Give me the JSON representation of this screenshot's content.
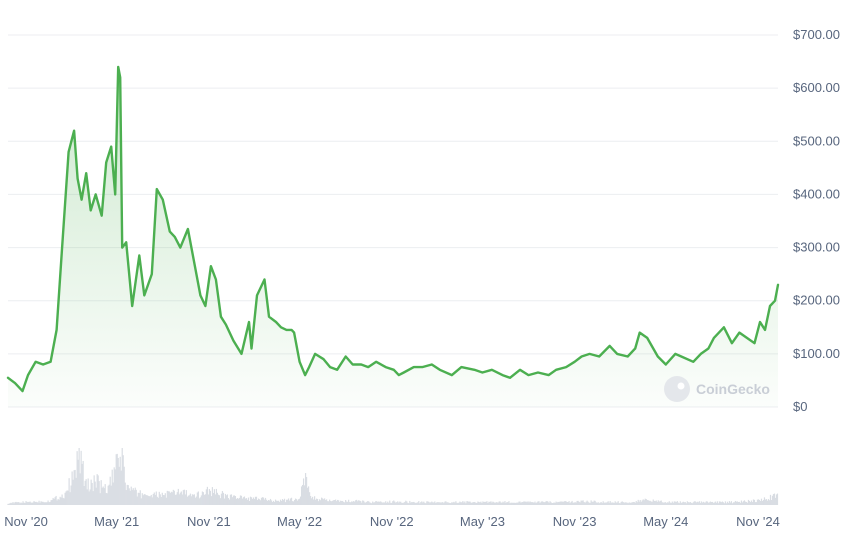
{
  "chart_data": {
    "type": "area",
    "currency_prefix": "$",
    "y_ticks": [
      "$700.00",
      "$600.00",
      "$500.00",
      "$400.00",
      "$300.00",
      "$200.00",
      "$100.00",
      "$0"
    ],
    "y_tick_values": [
      700,
      600,
      500,
      400,
      300,
      200,
      100,
      0
    ],
    "ylim": [
      0,
      700
    ],
    "x_ticks": [
      "Nov '20",
      "May '21",
      "Nov '21",
      "May '22",
      "Nov '22",
      "May '23",
      "Nov '23",
      "May '24",
      "Nov '24"
    ],
    "x_tick_dates": [
      "2020-11-01",
      "2021-05-01",
      "2021-11-01",
      "2022-05-01",
      "2022-11-01",
      "2023-05-01",
      "2023-11-01",
      "2024-05-01",
      "2024-11-01"
    ],
    "xlim": [
      "2020-09-26",
      "2024-12-11"
    ],
    "grid": true,
    "line_color": "#4caf50",
    "fill_color": "#4caf50",
    "volume_color": "#d9dde3",
    "watermark": "CoinGecko",
    "series": [
      {
        "x": [
          "2020-09-26",
          "2020-10-10",
          "2020-10-25",
          "2020-11-05",
          "2020-11-20",
          "2020-12-05",
          "2020-12-20",
          "2021-01-01",
          "2021-01-12",
          "2021-01-25",
          "2021-02-05",
          "2021-02-12",
          "2021-02-20",
          "2021-03-01",
          "2021-03-10",
          "2021-03-20",
          "2021-04-01",
          "2021-04-10",
          "2021-04-20",
          "2021-04-28",
          "2021-05-04",
          "2021-05-08",
          "2021-05-12",
          "2021-05-20",
          "2021-06-01",
          "2021-06-15",
          "2021-06-25",
          "2021-07-10",
          "2021-07-20",
          "2021-08-01",
          "2021-08-15",
          "2021-08-25",
          "2021-09-05",
          "2021-09-20",
          "2021-10-01",
          "2021-10-15",
          "2021-10-25",
          "2021-11-05",
          "2021-11-15",
          "2021-11-25",
          "2021-12-05",
          "2021-12-20",
          "2022-01-05",
          "2022-01-20",
          "2022-01-25",
          "2022-02-05",
          "2022-02-20",
          "2022-03-01",
          "2022-03-15",
          "2022-03-25",
          "2022-04-05",
          "2022-04-15",
          "2022-04-20",
          "2022-05-01",
          "2022-05-12",
          "2022-05-20",
          "2022-06-01",
          "2022-06-18",
          "2022-07-01",
          "2022-07-15",
          "2022-08-01",
          "2022-08-15",
          "2022-09-01",
          "2022-09-15",
          "2022-10-01",
          "2022-10-20",
          "2022-11-05",
          "2022-11-15",
          "2022-11-25",
          "2022-12-15",
          "2023-01-01",
          "2023-01-20",
          "2023-02-05",
          "2023-03-01",
          "2023-03-20",
          "2023-04-15",
          "2023-05-01",
          "2023-05-20",
          "2023-06-10",
          "2023-06-25",
          "2023-07-15",
          "2023-08-01",
          "2023-08-20",
          "2023-09-10",
          "2023-09-25",
          "2023-10-15",
          "2023-11-01",
          "2023-11-15",
          "2023-12-01",
          "2023-12-20",
          "2024-01-10",
          "2024-01-25",
          "2024-02-15",
          "2024-03-01",
          "2024-03-10",
          "2024-03-25",
          "2024-04-15",
          "2024-05-01",
          "2024-05-20",
          "2024-06-01",
          "2024-06-25",
          "2024-07-10",
          "2024-07-25",
          "2024-08-05",
          "2024-08-25",
          "2024-09-10",
          "2024-09-25",
          "2024-10-10",
          "2024-10-25",
          "2024-11-05",
          "2024-11-15",
          "2024-11-25",
          "2024-12-05",
          "2024-12-11"
        ],
        "values": [
          55,
          45,
          30,
          60,
          85,
          80,
          85,
          145,
          300,
          480,
          520,
          430,
          390,
          440,
          370,
          400,
          360,
          460,
          490,
          400,
          640,
          620,
          300,
          310,
          190,
          285,
          210,
          250,
          410,
          390,
          330,
          320,
          300,
          335,
          280,
          210,
          190,
          265,
          240,
          170,
          155,
          125,
          100,
          160,
          110,
          210,
          240,
          170,
          160,
          150,
          145,
          145,
          140,
          85,
          60,
          75,
          100,
          90,
          75,
          70,
          95,
          80,
          80,
          75,
          85,
          75,
          70,
          60,
          65,
          75,
          75,
          80,
          70,
          60,
          75,
          70,
          65,
          70,
          60,
          55,
          70,
          60,
          65,
          60,
          70,
          75,
          85,
          95,
          100,
          95,
          115,
          100,
          95,
          110,
          140,
          130,
          95,
          80,
          100,
          95,
          85,
          100,
          110,
          130,
          150,
          120,
          140,
          130,
          120,
          160,
          145,
          190,
          200,
          230
        ]
      }
    ],
    "volume": {
      "x": [
        "2020-09-26",
        "2020-11-01",
        "2020-12-15",
        "2021-01-15",
        "2021-02-05",
        "2021-02-15",
        "2021-03-01",
        "2021-03-20",
        "2021-04-10",
        "2021-04-25",
        "2021-05-10",
        "2021-05-20",
        "2021-06-10",
        "2021-07-15",
        "2021-08-20",
        "2021-09-10",
        "2021-10-01",
        "2021-11-01",
        "2021-12-01",
        "2022-01-10",
        "2022-02-15",
        "2022-03-10",
        "2022-04-10",
        "2022-05-01",
        "2022-05-12",
        "2022-05-25",
        "2022-06-20",
        "2022-07-20",
        "2022-08-20",
        "2022-09-20",
        "2022-10-20",
        "2022-11-10",
        "2022-12-10",
        "2023-01-20",
        "2023-02-20",
        "2023-03-20",
        "2023-04-20",
        "2023-05-20",
        "2023-06-20",
        "2023-07-20",
        "2023-08-20",
        "2023-09-20",
        "2023-10-20",
        "2023-11-20",
        "2023-12-20",
        "2024-01-20",
        "2024-02-20",
        "2024-03-15",
        "2024-04-15",
        "2024-05-15",
        "2024-06-15",
        "2024-07-15",
        "2024-08-15",
        "2024-09-15",
        "2024-10-15",
        "2024-11-10",
        "2024-11-25",
        "2024-12-11"
      ],
      "values": [
        2,
        3,
        4,
        10,
        30,
        55,
        20,
        25,
        15,
        30,
        55,
        20,
        12,
        10,
        12,
        14,
        8,
        16,
        10,
        7,
        6,
        5,
        5,
        7,
        28,
        8,
        5,
        4,
        4,
        3,
        3,
        4,
        3,
        3,
        3,
        3,
        3,
        3,
        3,
        3,
        3,
        3,
        3,
        4,
        3,
        3,
        3,
        5,
        4,
        3,
        3,
        3,
        3,
        3,
        4,
        6,
        8,
        12
      ]
    }
  }
}
